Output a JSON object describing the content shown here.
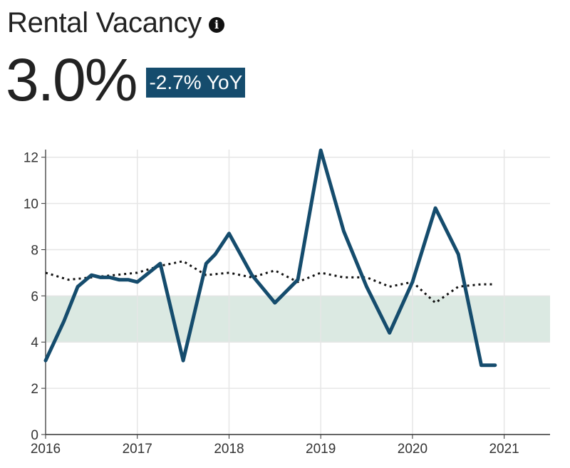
{
  "header": {
    "title": "Rental Vacancy",
    "info_icon": "info-icon",
    "value": "3.0%",
    "change_badge": "-2.7% YoY",
    "badge_color": "#154c6d"
  },
  "chart_data": {
    "type": "line",
    "x_ticks": [
      "2016",
      "2017",
      "2018",
      "2019",
      "2020",
      "2021"
    ],
    "y_ticks": [
      "0",
      "2",
      "4",
      "6",
      "8",
      "10",
      "12"
    ],
    "xlim": [
      2016.0,
      2021.5
    ],
    "ylim": [
      0,
      12.3
    ],
    "grid": true,
    "reference_band": {
      "from": 4,
      "to": 6,
      "color": "#dbe9e2"
    },
    "series": [
      {
        "style": "solid",
        "color": "#154c6d",
        "points": [
          [
            2016.0,
            3.2
          ],
          [
            2016.2,
            4.9
          ],
          [
            2016.35,
            6.4
          ],
          [
            2016.5,
            6.9
          ],
          [
            2016.6,
            6.8
          ],
          [
            2016.7,
            6.8
          ],
          [
            2016.8,
            6.7
          ],
          [
            2016.9,
            6.7
          ],
          [
            2017.0,
            6.6
          ],
          [
            2017.25,
            7.4
          ],
          [
            2017.5,
            3.2
          ],
          [
            2017.75,
            7.4
          ],
          [
            2017.85,
            7.8
          ],
          [
            2018.0,
            8.7
          ],
          [
            2018.25,
            6.9
          ],
          [
            2018.5,
            5.7
          ],
          [
            2018.6,
            6.1
          ],
          [
            2018.75,
            6.7
          ],
          [
            2019.0,
            12.3
          ],
          [
            2019.25,
            8.8
          ],
          [
            2019.5,
            6.4
          ],
          [
            2019.75,
            4.4
          ],
          [
            2020.0,
            6.6
          ],
          [
            2020.25,
            9.8
          ],
          [
            2020.4,
            8.6
          ],
          [
            2020.5,
            7.8
          ],
          [
            2020.75,
            3.0
          ],
          [
            2020.9,
            3.0
          ]
        ]
      },
      {
        "style": "dotted",
        "color": "#111111",
        "points": [
          [
            2016.0,
            7.0
          ],
          [
            2016.25,
            6.7
          ],
          [
            2016.5,
            6.8
          ],
          [
            2016.75,
            6.9
          ],
          [
            2017.0,
            7.0
          ],
          [
            2017.25,
            7.3
          ],
          [
            2017.5,
            7.5
          ],
          [
            2017.75,
            6.9
          ],
          [
            2018.0,
            7.0
          ],
          [
            2018.25,
            6.8
          ],
          [
            2018.5,
            7.1
          ],
          [
            2018.75,
            6.6
          ],
          [
            2019.0,
            7.0
          ],
          [
            2019.25,
            6.8
          ],
          [
            2019.5,
            6.8
          ],
          [
            2019.75,
            6.4
          ],
          [
            2020.0,
            6.6
          ],
          [
            2020.25,
            5.7
          ],
          [
            2020.5,
            6.4
          ],
          [
            2020.75,
            6.5
          ],
          [
            2020.9,
            6.5
          ]
        ]
      }
    ]
  }
}
